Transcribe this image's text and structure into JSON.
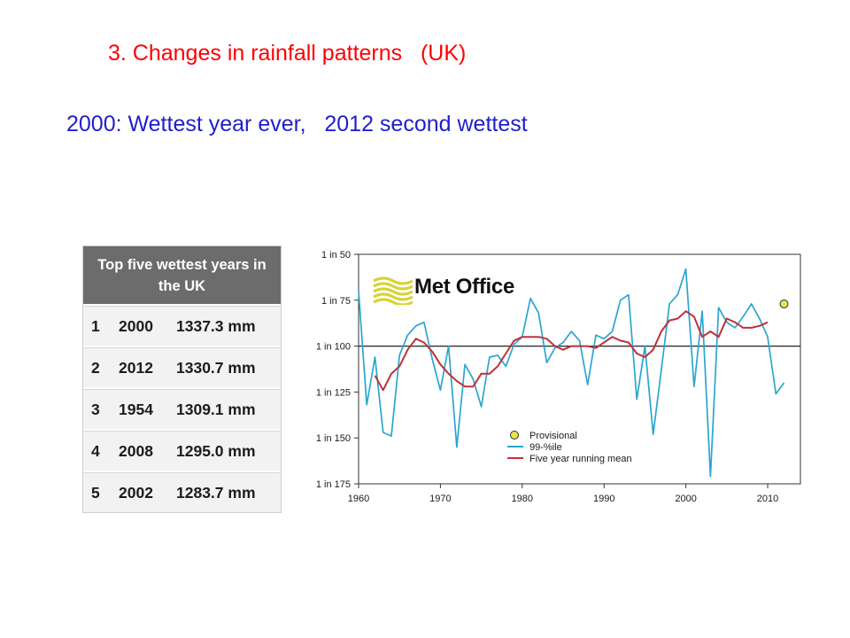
{
  "slide": {
    "title": "3. Changes in rainfall patterns   (UK)",
    "subtitle": "2000: Wettest year ever,   2012 second wettest",
    "colors": {
      "title": "#ff0000",
      "subtitle": "#1f1fcc"
    }
  },
  "table": {
    "header": "Top five wettest years in the UK",
    "rows": [
      {
        "rank": "1",
        "year": "2000",
        "value": "1337.3 mm"
      },
      {
        "rank": "2",
        "year": "2012",
        "value": "1330.7 mm"
      },
      {
        "rank": "3",
        "year": "1954",
        "value": "1309.1 mm"
      },
      {
        "rank": "4",
        "year": "2008",
        "value": "1295.0 mm"
      },
      {
        "rank": "5",
        "year": "2002",
        "value": "1283.7 mm"
      }
    ]
  },
  "logo": {
    "text": "Met Office",
    "icon": "met-office-waves-icon"
  },
  "chart_data": {
    "type": "line",
    "xlim": [
      1960,
      2014
    ],
    "ylim": [
      50,
      175
    ],
    "y_reversed": true,
    "x_ticks": [
      "1960",
      "1970",
      "1980",
      "1990",
      "2000",
      "2010"
    ],
    "y_ticks": [
      "1 in 50",
      "1 in 75",
      "1 in 100",
      "1 in 125",
      "1 in 150",
      "1 in 175"
    ],
    "reference_line": 100,
    "legend_position": "bottom-center",
    "series": [
      {
        "name": "99-%ile",
        "color": "#2aa6cf",
        "x": [
          1960,
          1961,
          1962,
          1963,
          1964,
          1965,
          1966,
          1967,
          1968,
          1969,
          1970,
          1971,
          1972,
          1973,
          1974,
          1975,
          1976,
          1977,
          1978,
          1979,
          1980,
          1981,
          1982,
          1983,
          1984,
          1985,
          1986,
          1987,
          1988,
          1989,
          1990,
          1991,
          1992,
          1993,
          1994,
          1995,
          1996,
          1997,
          1998,
          1999,
          2000,
          2001,
          2002,
          2003,
          2004,
          2005,
          2006,
          2007,
          2008,
          2009,
          2010,
          2011,
          2012
        ],
        "y": [
          70,
          132,
          106,
          147,
          149,
          105,
          94,
          89,
          87,
          107,
          124,
          100,
          155,
          110,
          118,
          133,
          106,
          105,
          111,
          99,
          95,
          74,
          82,
          109,
          101,
          98,
          92,
          97,
          121,
          94,
          96,
          92,
          75,
          72,
          129,
          100,
          148,
          113,
          77,
          72,
          58,
          122,
          81,
          171,
          79,
          87,
          90,
          84,
          77,
          85,
          95,
          126,
          120
        ]
      },
      {
        "name": "Five year running mean",
        "color": "#c0303a",
        "x": [
          1962,
          1963,
          1964,
          1965,
          1966,
          1967,
          1968,
          1969,
          1970,
          1971,
          1972,
          1973,
          1974,
          1975,
          1976,
          1977,
          1978,
          1979,
          1980,
          1981,
          1982,
          1983,
          1984,
          1985,
          1986,
          1987,
          1988,
          1989,
          1990,
          1991,
          1992,
          1993,
          1994,
          1995,
          1996,
          1997,
          1998,
          1999,
          2000,
          2001,
          2002,
          2003,
          2004,
          2005,
          2006,
          2007,
          2008,
          2009,
          2010
        ],
        "y": [
          116,
          124,
          115,
          111,
          102,
          96,
          98,
          103,
          110,
          115,
          119,
          122,
          122,
          115,
          115,
          111,
          104,
          97,
          95,
          95,
          95,
          96,
          100,
          102,
          100,
          100,
          100,
          101,
          98,
          95,
          97,
          98,
          104,
          106,
          102,
          92,
          86,
          85,
          81,
          84,
          95,
          92,
          95,
          85,
          87,
          90,
          90,
          89,
          87
        ]
      },
      {
        "name": "Provisional",
        "color": "#e8e350",
        "x": [
          2012
        ],
        "y": [
          77
        ]
      }
    ]
  }
}
